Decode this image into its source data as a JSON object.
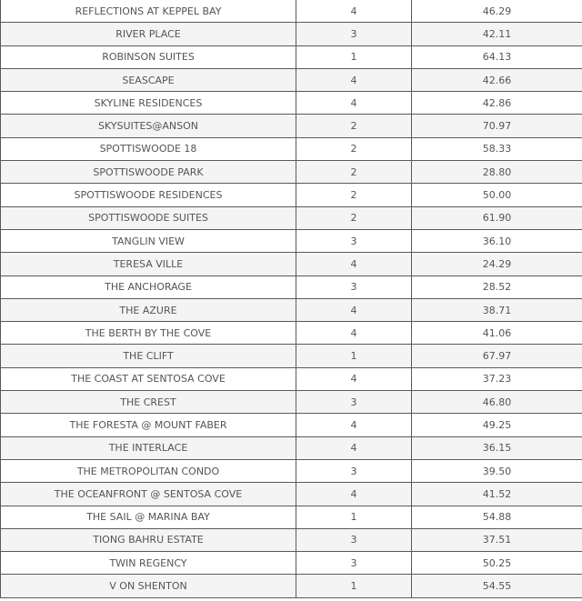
{
  "table": {
    "rows": [
      [
        "REFLECTIONS AT KEPPEL BAY",
        "4",
        "46.29"
      ],
      [
        "RIVER PLACE",
        "3",
        "42.11"
      ],
      [
        "ROBINSON SUITES",
        "1",
        "64.13"
      ],
      [
        "SEASCAPE",
        "4",
        "42.66"
      ],
      [
        "SKYLINE RESIDENCES",
        "4",
        "42.86"
      ],
      [
        "SKYSUITES@ANSON",
        "2",
        "70.97"
      ],
      [
        "SPOTTISWOODE 18",
        "2",
        "58.33"
      ],
      [
        "SPOTTISWOODE PARK",
        "2",
        "28.80"
      ],
      [
        "SPOTTISWOODE RESIDENCES",
        "2",
        "50.00"
      ],
      [
        "SPOTTISWOODE SUITES",
        "2",
        "61.90"
      ],
      [
        "TANGLIN VIEW",
        "3",
        "36.10"
      ],
      [
        "TERESA VILLE",
        "4",
        "24.29"
      ],
      [
        "THE ANCHORAGE",
        "3",
        "28.52"
      ],
      [
        "THE AZURE",
        "4",
        "38.71"
      ],
      [
        "THE BERTH BY THE COVE",
        "4",
        "41.06"
      ],
      [
        "THE CLIFT",
        "1",
        "67.97"
      ],
      [
        "THE COAST AT SENTOSA COVE",
        "4",
        "37.23"
      ],
      [
        "THE CREST",
        "3",
        "46.80"
      ],
      [
        "THE FORESTA @ MOUNT FABER",
        "4",
        "49.25"
      ],
      [
        "THE INTERLACE",
        "4",
        "36.15"
      ],
      [
        "THE METROPOLITAN CONDO",
        "3",
        "39.50"
      ],
      [
        "THE OCEANFRONT @ SENTOSA COVE",
        "4",
        "41.52"
      ],
      [
        "THE SAIL @ MARINA BAY",
        "1",
        "54.88"
      ],
      [
        "TIONG BAHRU ESTATE",
        "3",
        "37.51"
      ],
      [
        "TWIN REGENCY",
        "3",
        "50.25"
      ],
      [
        "V ON SHENTON",
        "1",
        "54.55"
      ]
    ]
  }
}
